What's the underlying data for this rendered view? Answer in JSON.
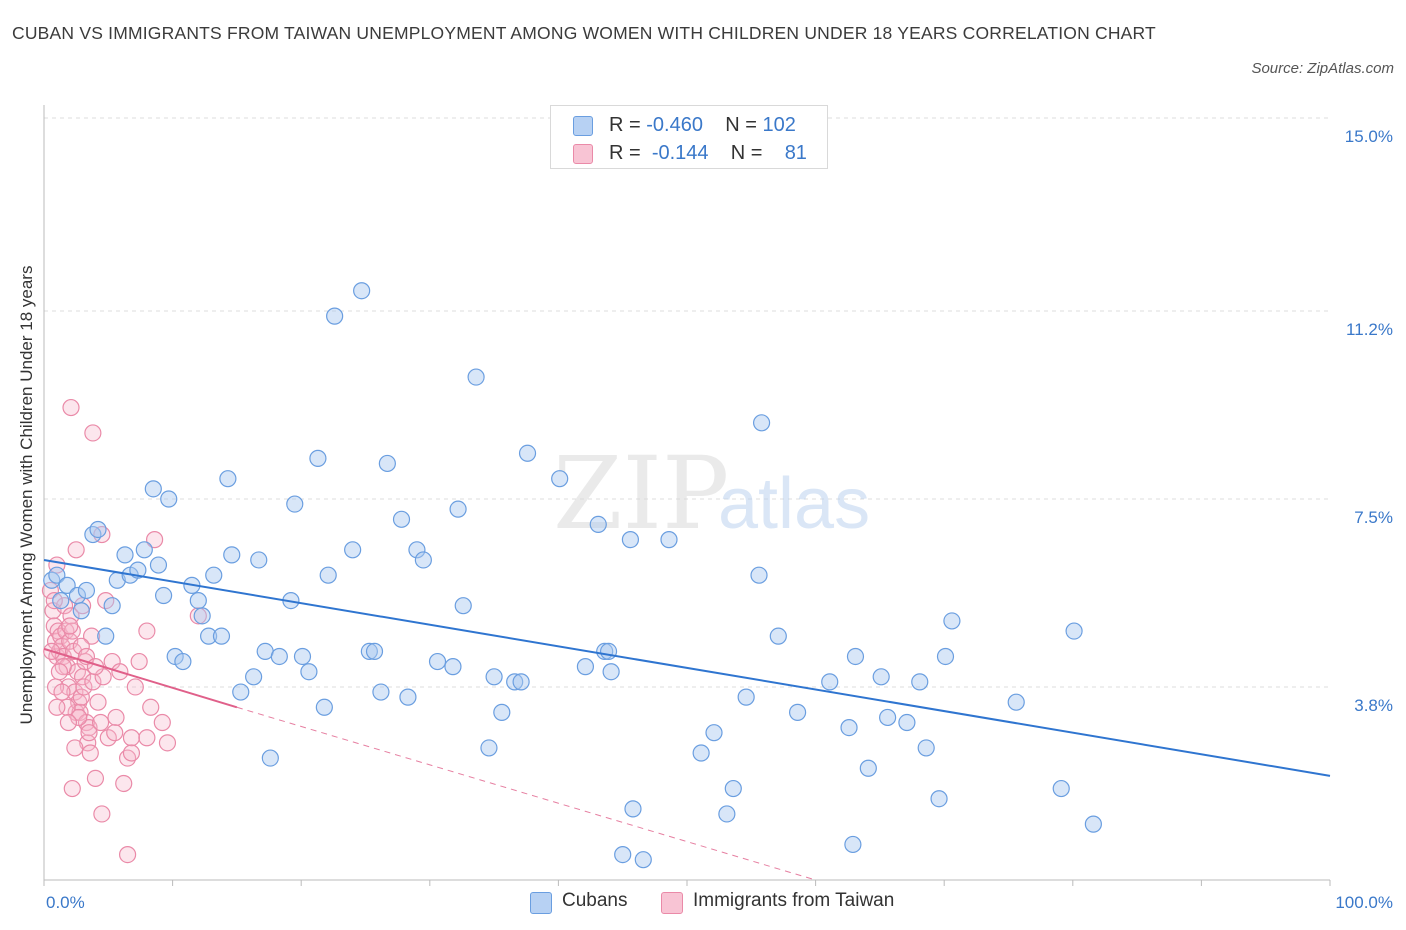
{
  "title": "CUBAN VS IMMIGRANTS FROM TAIWAN UNEMPLOYMENT AMONG WOMEN WITH CHILDREN UNDER 18 YEARS CORRELATION CHART",
  "source": "Source: ZipAtlas.com",
  "watermark": {
    "zip": "ZIP",
    "atlas": "atlas"
  },
  "legend": {
    "rows": [
      {
        "r_label": "R = ",
        "r_value": "-0.460",
        "n_label": "N = ",
        "n_value": "102"
      },
      {
        "r_label": "R = ",
        "r_value": "-0.144",
        "n_label": "N = ",
        "n_value": "81"
      }
    ]
  },
  "colors": {
    "blue_fill": "#a9c8f0",
    "blue_stroke": "#6a9ee0",
    "blue_line": "#2f75d0",
    "pink_fill": "#f6b8cb",
    "pink_stroke": "#ea8aa8",
    "pink_line": "#e0608a",
    "axis_text": "#3a78c9",
    "grid": "#dcdcdc"
  },
  "chart_data": {
    "type": "scatter",
    "title": "CUBAN VS IMMIGRANTS FROM TAIWAN UNEMPLOYMENT AMONG WOMEN WITH CHILDREN UNDER 18 YEARS CORRELATION CHART",
    "xlabel": "",
    "ylabel": "Unemployment Among Women with Children Under 18 years",
    "xlim": [
      0,
      100
    ],
    "ylim": [
      0,
      15.0
    ],
    "x_tick_labels": [
      "0.0%",
      "100.0%"
    ],
    "y_ticks": [
      3.8,
      7.5,
      11.2,
      15.0
    ],
    "y_tick_labels": [
      "3.8%",
      "7.5%",
      "11.2%",
      "15.0%"
    ],
    "grid": true,
    "legend_position": "bottom",
    "series": [
      {
        "name": "Cubans",
        "trend": {
          "x": [
            0,
            100
          ],
          "y": [
            6.3,
            2.05
          ]
        },
        "points": [
          [
            0.6,
            5.9
          ],
          [
            1.0,
            6.0
          ],
          [
            1.3,
            5.5
          ],
          [
            1.8,
            5.8
          ],
          [
            2.6,
            5.6
          ],
          [
            2.9,
            5.3
          ],
          [
            3.3,
            5.7
          ],
          [
            3.8,
            6.8
          ],
          [
            4.2,
            6.9
          ],
          [
            4.8,
            4.8
          ],
          [
            5.3,
            5.4
          ],
          [
            5.7,
            5.9
          ],
          [
            6.3,
            6.4
          ],
          [
            6.7,
            6.0
          ],
          [
            7.3,
            6.1
          ],
          [
            7.8,
            6.5
          ],
          [
            8.5,
            7.7
          ],
          [
            8.9,
            6.2
          ],
          [
            9.3,
            5.6
          ],
          [
            9.7,
            7.5
          ],
          [
            10.2,
            4.4
          ],
          [
            10.8,
            4.3
          ],
          [
            11.5,
            5.8
          ],
          [
            12.0,
            5.5
          ],
          [
            12.3,
            5.2
          ],
          [
            12.8,
            4.8
          ],
          [
            13.2,
            6.0
          ],
          [
            13.8,
            4.8
          ],
          [
            14.3,
            7.9
          ],
          [
            14.6,
            6.4
          ],
          [
            15.3,
            3.7
          ],
          [
            16.3,
            4.0
          ],
          [
            16.7,
            6.3
          ],
          [
            17.2,
            4.5
          ],
          [
            17.6,
            2.4
          ],
          [
            18.3,
            4.4
          ],
          [
            19.2,
            5.5
          ],
          [
            19.5,
            7.4
          ],
          [
            20.1,
            4.4
          ],
          [
            20.6,
            4.1
          ],
          [
            21.3,
            8.3
          ],
          [
            21.8,
            3.4
          ],
          [
            22.1,
            6.0
          ],
          [
            22.6,
            11.1
          ],
          [
            24.0,
            6.5
          ],
          [
            24.7,
            11.6
          ],
          [
            25.3,
            4.5
          ],
          [
            25.7,
            4.5
          ],
          [
            26.2,
            3.7
          ],
          [
            26.7,
            8.2
          ],
          [
            27.8,
            7.1
          ],
          [
            28.3,
            3.6
          ],
          [
            29.0,
            6.5
          ],
          [
            29.5,
            6.3
          ],
          [
            30.6,
            4.3
          ],
          [
            31.8,
            4.2
          ],
          [
            32.2,
            7.3
          ],
          [
            32.6,
            5.4
          ],
          [
            33.6,
            9.9
          ],
          [
            34.6,
            2.6
          ],
          [
            35.0,
            4.0
          ],
          [
            35.6,
            3.3
          ],
          [
            36.6,
            3.9
          ],
          [
            37.1,
            3.9
          ],
          [
            37.6,
            8.4
          ],
          [
            40.1,
            7.9
          ],
          [
            42.1,
            4.2
          ],
          [
            43.1,
            7.0
          ],
          [
            43.6,
            4.5
          ],
          [
            43.9,
            4.5
          ],
          [
            44.1,
            4.1
          ],
          [
            45.0,
            0.5
          ],
          [
            45.6,
            6.7
          ],
          [
            45.8,
            1.4
          ],
          [
            46.6,
            0.4
          ],
          [
            48.6,
            6.7
          ],
          [
            51.1,
            2.5
          ],
          [
            52.1,
            2.9
          ],
          [
            53.1,
            1.3
          ],
          [
            53.6,
            1.8
          ],
          [
            54.6,
            3.6
          ],
          [
            55.6,
            6.0
          ],
          [
            55.8,
            9.0
          ],
          [
            57.1,
            4.8
          ],
          [
            58.6,
            3.3
          ],
          [
            61.1,
            3.9
          ],
          [
            62.6,
            3.0
          ],
          [
            62.9,
            0.7
          ],
          [
            63.1,
            4.4
          ],
          [
            64.1,
            2.2
          ],
          [
            65.1,
            4.0
          ],
          [
            65.6,
            3.2
          ],
          [
            67.1,
            3.1
          ],
          [
            68.1,
            3.9
          ],
          [
            68.6,
            2.6
          ],
          [
            69.6,
            1.6
          ],
          [
            70.6,
            5.1
          ],
          [
            70.1,
            4.4
          ],
          [
            75.6,
            3.5
          ],
          [
            79.1,
            1.8
          ],
          [
            80.1,
            4.9
          ],
          [
            81.6,
            1.1
          ]
        ]
      },
      {
        "name": "Immigrants from Taiwan",
        "trend": {
          "x": [
            0,
            15
          ],
          "y": [
            4.55,
            3.4
          ]
        },
        "trend_extension": {
          "x": [
            15,
            60
          ],
          "y": [
            3.4,
            0
          ]
        },
        "points": [
          [
            0.5,
            5.7
          ],
          [
            0.7,
            5.3
          ],
          [
            0.8,
            5.0
          ],
          [
            0.9,
            4.7
          ],
          [
            1.0,
            4.4
          ],
          [
            1.1,
            4.9
          ],
          [
            1.2,
            4.5
          ],
          [
            1.3,
            4.8
          ],
          [
            1.4,
            4.6
          ],
          [
            1.5,
            4.4
          ],
          [
            1.6,
            5.4
          ],
          [
            1.7,
            4.9
          ],
          [
            1.8,
            4.2
          ],
          [
            1.9,
            3.8
          ],
          [
            2.0,
            4.7
          ],
          [
            2.1,
            5.2
          ],
          [
            2.2,
            4.9
          ],
          [
            2.3,
            4.5
          ],
          [
            2.4,
            3.7
          ],
          [
            2.5,
            3.3
          ],
          [
            2.6,
            4.1
          ],
          [
            2.7,
            3.5
          ],
          [
            2.8,
            3.3
          ],
          [
            2.9,
            3.6
          ],
          [
            3.0,
            4.0
          ],
          [
            3.1,
            3.8
          ],
          [
            3.2,
            4.3
          ],
          [
            3.3,
            3.1
          ],
          [
            3.4,
            2.7
          ],
          [
            3.5,
            3.0
          ],
          [
            3.6,
            2.5
          ],
          [
            3.7,
            4.8
          ],
          [
            3.8,
            3.9
          ],
          [
            4.0,
            2.0
          ],
          [
            4.2,
            3.5
          ],
          [
            4.4,
            3.1
          ],
          [
            4.6,
            4.0
          ],
          [
            4.8,
            5.5
          ],
          [
            5.0,
            2.8
          ],
          [
            5.3,
            4.3
          ],
          [
            5.6,
            3.2
          ],
          [
            5.9,
            4.1
          ],
          [
            6.2,
            1.9
          ],
          [
            6.5,
            2.4
          ],
          [
            6.8,
            2.8
          ],
          [
            7.1,
            3.8
          ],
          [
            7.4,
            4.3
          ],
          [
            8.0,
            2.8
          ],
          [
            8.3,
            3.4
          ],
          [
            8.6,
            6.7
          ],
          [
            9.2,
            3.1
          ],
          [
            9.6,
            2.7
          ],
          [
            12.0,
            5.2
          ],
          [
            2.1,
            9.3
          ],
          [
            3.8,
            8.8
          ],
          [
            4.5,
            6.8
          ],
          [
            2.5,
            6.5
          ],
          [
            1.0,
            6.2
          ],
          [
            3.0,
            5.4
          ],
          [
            2.0,
            5.0
          ],
          [
            1.5,
            4.2
          ],
          [
            0.9,
            3.8
          ],
          [
            1.8,
            3.4
          ],
          [
            2.2,
            1.8
          ],
          [
            4.5,
            1.3
          ],
          [
            6.5,
            0.5
          ],
          [
            3.5,
            2.9
          ],
          [
            8.0,
            4.9
          ],
          [
            2.7,
            3.2
          ],
          [
            1.2,
            4.1
          ],
          [
            0.6,
            4.5
          ],
          [
            1.4,
            3.7
          ],
          [
            2.9,
            4.6
          ],
          [
            3.3,
            4.4
          ],
          [
            0.8,
            5.5
          ],
          [
            5.5,
            2.9
          ],
          [
            1.0,
            3.4
          ],
          [
            6.8,
            2.5
          ],
          [
            4.0,
            4.2
          ],
          [
            2.4,
            2.6
          ],
          [
            1.9,
            3.1
          ]
        ]
      }
    ]
  },
  "bottom_legend": [
    "Cubans",
    "Immigrants from Taiwan"
  ]
}
